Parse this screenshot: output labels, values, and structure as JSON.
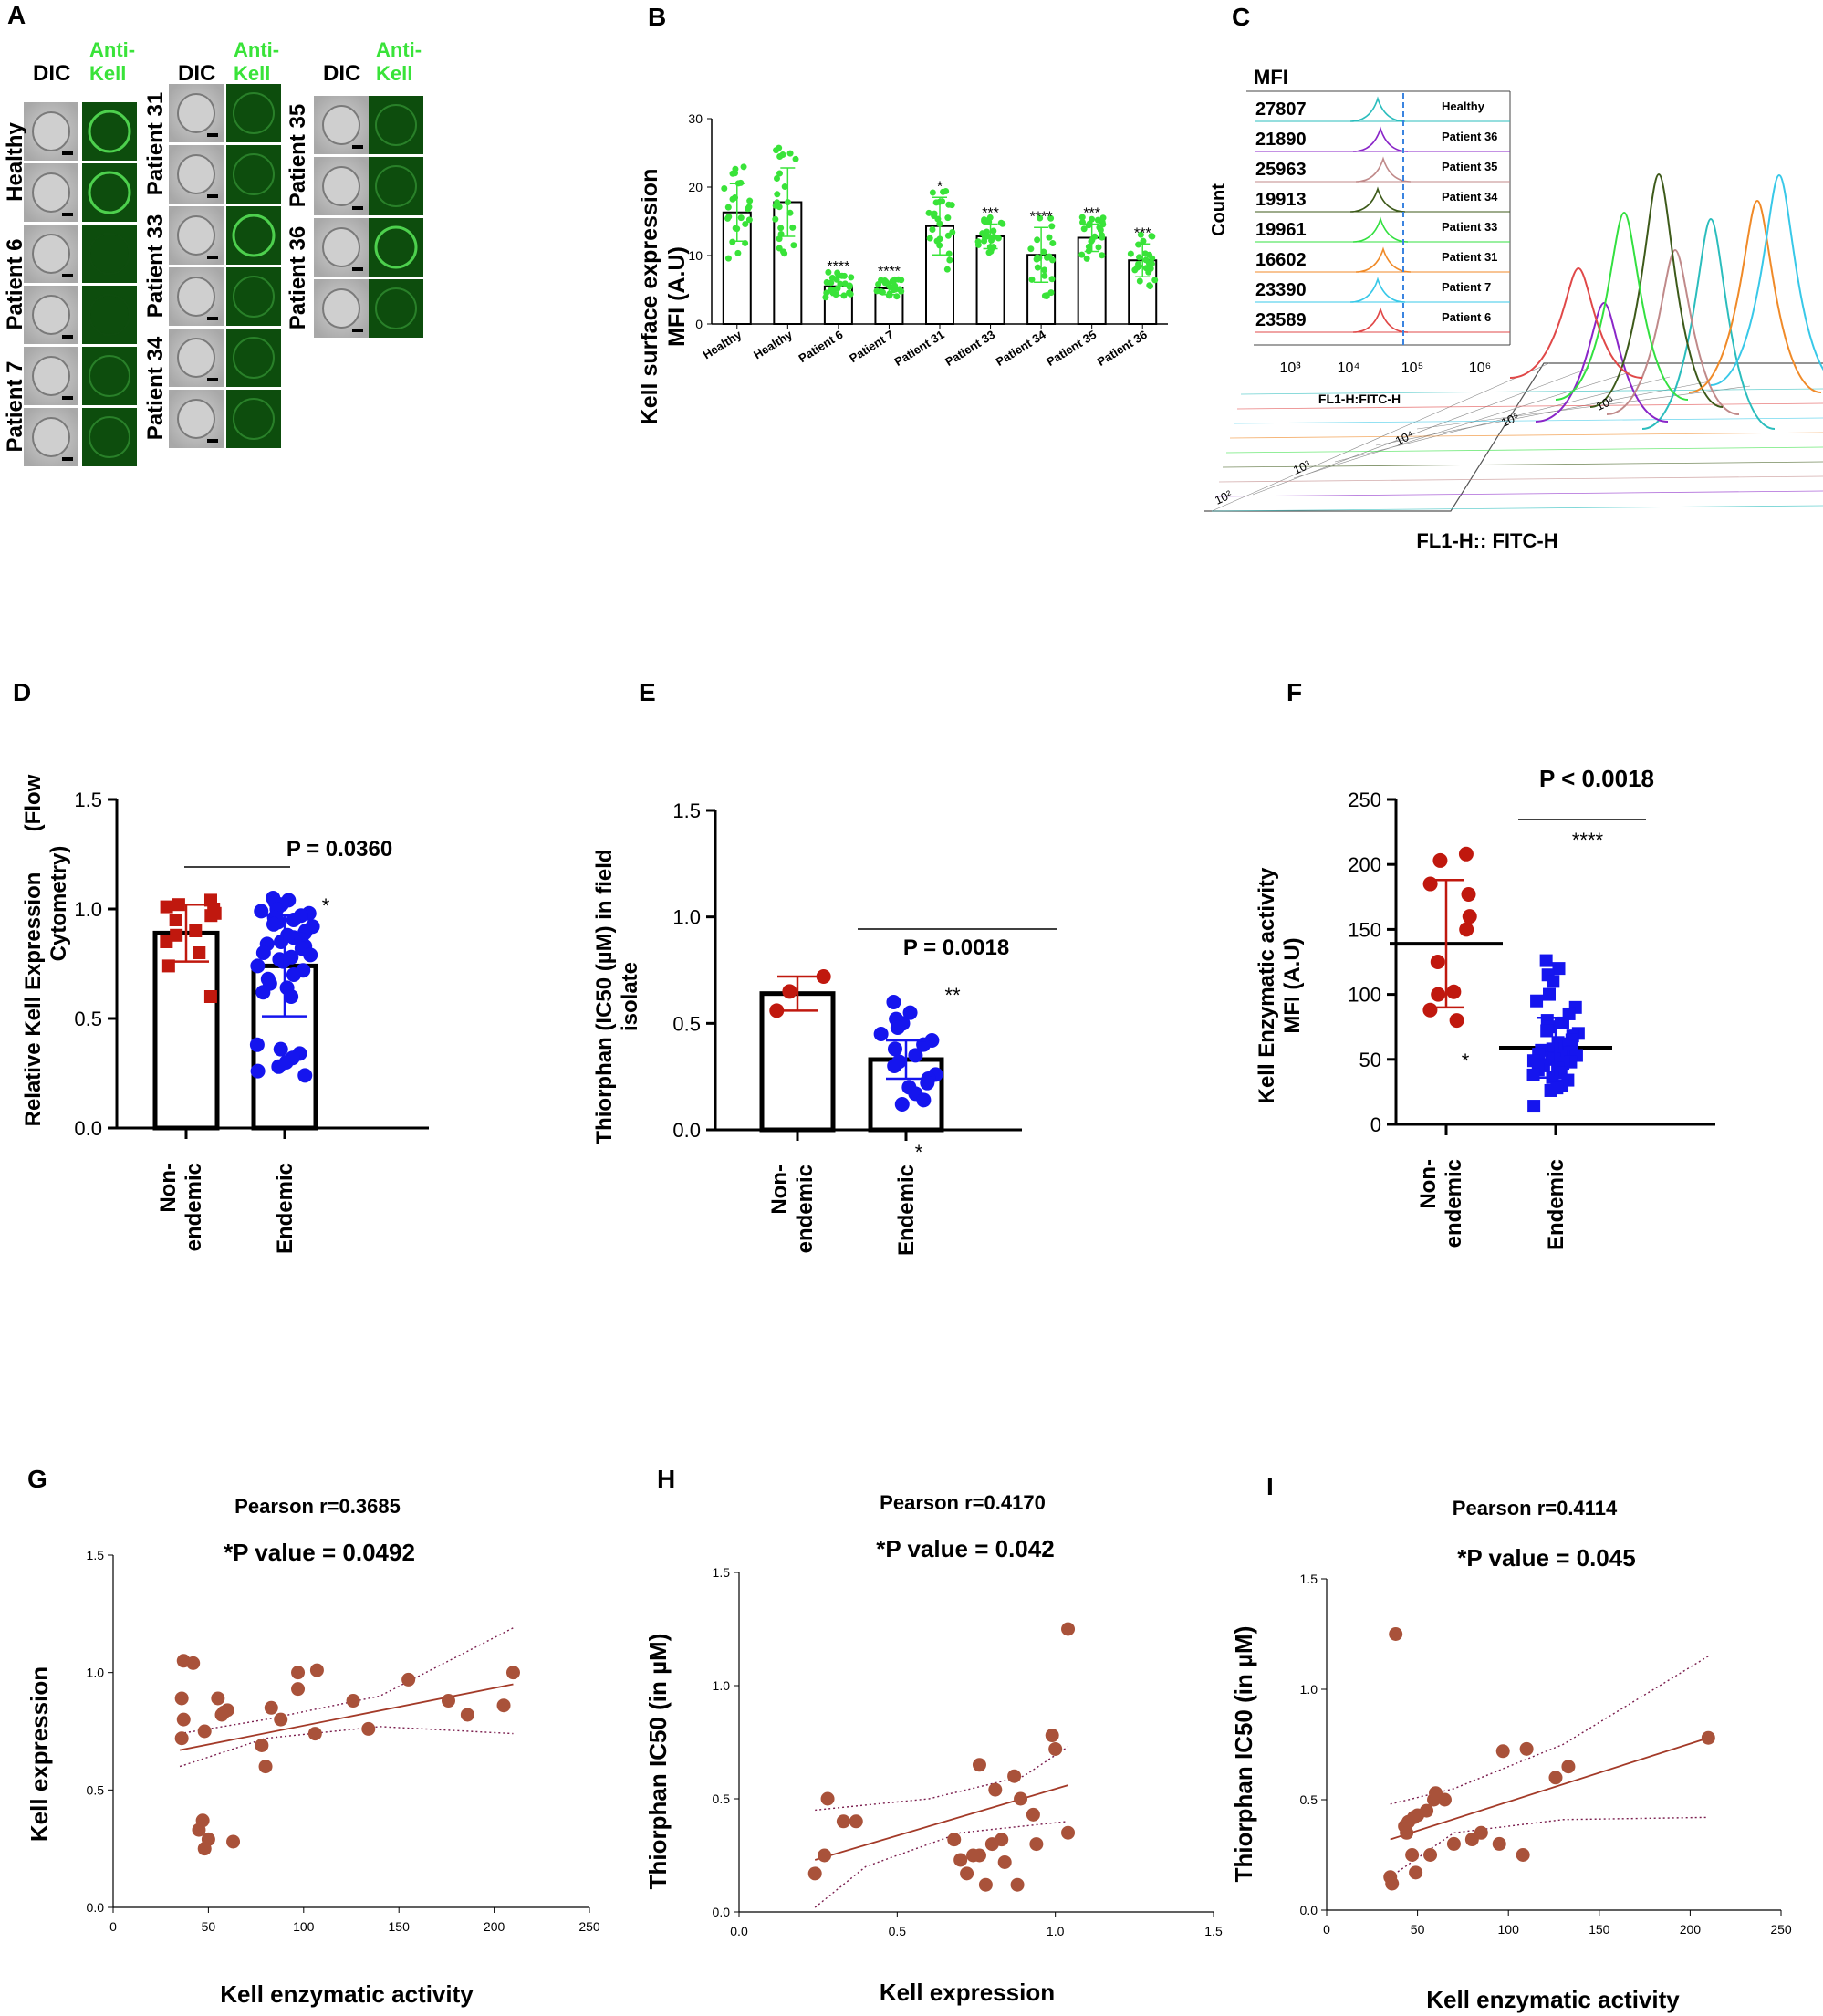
{
  "colors": {
    "green": "#39e339",
    "red": "#c0180e",
    "blue": "#1515ee",
    "brown": "#a9523a",
    "fitline": "#a33a28",
    "ci": "#7a1d4d",
    "dicbg": "#bdbdbd",
    "fluor": "#0d4d0d",
    "fluorRing": "#59e759"
  },
  "panelA": {
    "letter": "A",
    "dic_label": "DIC",
    "anti_kell_line1": "Anti-",
    "anti_kell_line2": "Kell",
    "columns": [
      {
        "rows": [
          "Healthy",
          "Patient 6",
          "Patient 7"
        ]
      },
      {
        "rows": [
          "Patient 31",
          "Patient 33",
          "Patient 34"
        ]
      },
      {
        "rows": [
          "Patient 35",
          "Patient 36"
        ]
      }
    ]
  },
  "panelB": {
    "letter": "B",
    "ylabel_line1": "Kell surface expression",
    "ylabel_line2": "MFI (A.U)",
    "y_ticks": [
      "0",
      "10",
      "20",
      "30"
    ],
    "categories": [
      "Healthy",
      "Healthy",
      "Patient 6",
      "Patient 7",
      "Patient 31",
      "Patient 33",
      "Patient 34",
      "Patient 35",
      "Patient 36"
    ],
    "values": [
      16.3,
      17.8,
      5.5,
      5.2,
      14.3,
      12.8,
      10.1,
      12.6,
      9.3
    ],
    "errors": [
      4.2,
      5.0,
      1.3,
      0.9,
      4.2,
      1.8,
      4.0,
      2.0,
      2.4
    ],
    "significance": [
      "",
      "",
      "****",
      "****",
      "*",
      "***",
      "****",
      "***",
      "***"
    ],
    "ylim": [
      0,
      30
    ]
  },
  "panelC": {
    "letter": "C",
    "mfi_title": "MFI",
    "count_label": "Count",
    "inset_xlabel": "FL1-H:FITC-H",
    "xlabel": "FL1-H:: FITC-H",
    "inset_ticks": [
      "10³",
      "10⁴",
      "10⁵",
      "10⁶"
    ],
    "main_ticks": [
      "10²",
      "10³",
      "10⁴",
      "10⁵",
      "10⁶"
    ],
    "rows": [
      {
        "mfi": "27807",
        "label": "Healthy",
        "color": "#2bbdbd"
      },
      {
        "mfi": "21890",
        "label": "Patient 36",
        "color": "#8a26c8"
      },
      {
        "mfi": "25963",
        "label": "Patient 35",
        "color": "#c08a8a"
      },
      {
        "mfi": "19913",
        "label": "Patient 34",
        "color": "#3d5a1a"
      },
      {
        "mfi": "19961",
        "label": "Patient 33",
        "color": "#33e040"
      },
      {
        "mfi": "16602",
        "label": "Patient 31",
        "color": "#f08a28"
      },
      {
        "mfi": "23390",
        "label": "Patient 7",
        "color": "#38c8e8"
      },
      {
        "mfi": "23589",
        "label": "Patient 6",
        "color": "#e04848"
      }
    ]
  },
  "panelD": {
    "letter": "D",
    "ylabel_line1": "Relative Kell Expression",
    "ylabel_line2": "(Flow",
    "ylabel_line3": "Cytometry)",
    "y_ticks": [
      "0.0",
      "0.5",
      "1.0",
      "1.5"
    ],
    "ylim": [
      0,
      1.5
    ],
    "p_text": "P = 0.0360",
    "star": "*",
    "groups": [
      {
        "label_line1": "Non-",
        "label_line2": "endemic",
        "mean": 0.89,
        "sd": 0.13,
        "marker": "square",
        "points": [
          1.04,
          1.02,
          1.01,
          1.0,
          0.98,
          0.97,
          0.95,
          0.9,
          0.88,
          0.85,
          0.8,
          0.74,
          0.6
        ]
      },
      {
        "label_line1": "Endemic",
        "label_line2": "",
        "mean": 0.74,
        "sd": 0.23,
        "marker": "circle",
        "points": [
          1.05,
          1.04,
          1.03,
          1.02,
          1.0,
          0.99,
          0.98,
          0.97,
          0.96,
          0.95,
          0.94,
          0.93,
          0.92,
          0.9,
          0.89,
          0.88,
          0.87,
          0.86,
          0.85,
          0.84,
          0.83,
          0.82,
          0.8,
          0.79,
          0.78,
          0.77,
          0.76,
          0.74,
          0.72,
          0.7,
          0.68,
          0.66,
          0.64,
          0.62,
          0.6,
          0.38,
          0.36,
          0.34,
          0.32,
          0.3,
          0.28,
          0.26,
          0.24
        ]
      }
    ]
  },
  "panelE": {
    "letter": "E",
    "ylabel_line1": "Thiorphan (IC50 (µM) in field",
    "ylabel_line2": "isolate",
    "y_ticks": [
      "0.0",
      "0.5",
      "1.0",
      "1.5"
    ],
    "ylim": [
      0,
      1.5
    ],
    "p_text": "P = 0.0018",
    "stars": "**",
    "star": "*",
    "groups": [
      {
        "label_line1": "Non-",
        "label_line2": "endemic",
        "mean": 0.64,
        "sd": 0.08,
        "marker": "circle",
        "points": [
          0.72,
          0.65,
          0.56
        ]
      },
      {
        "label_line1": "Endemic",
        "label_line2": "",
        "mean": 0.33,
        "sd": 0.09,
        "marker": "circle",
        "points": [
          0.6,
          0.55,
          0.52,
          0.5,
          0.48,
          0.45,
          0.42,
          0.4,
          0.38,
          0.35,
          0.32,
          0.3,
          0.26,
          0.24,
          0.22,
          0.2,
          0.17,
          0.14,
          0.12
        ]
      }
    ]
  },
  "panelF": {
    "letter": "F",
    "ylabel_line1": "Kell Enzymatic activity",
    "ylabel_line2": "MFI (A.U)",
    "y_ticks": [
      "0",
      "50",
      "100",
      "150",
      "200",
      "250"
    ],
    "ylim": [
      0,
      250
    ],
    "p_text": "P < 0.0018",
    "stars": "****",
    "star": "*",
    "groups": [
      {
        "label_line1": "Non-",
        "label_line2": "endemic",
        "mean": 139,
        "sd": 49,
        "marker": "circle",
        "points": [
          208,
          203,
          185,
          177,
          160,
          150,
          125,
          102,
          100,
          88,
          80
        ]
      },
      {
        "label_line1": "Endemic",
        "label_line2": "",
        "mean": 59,
        "sd": 23,
        "marker": "square",
        "points": [
          126,
          120,
          115,
          110,
          100,
          95,
          90,
          85,
          80,
          78,
          75,
          72,
          70,
          68,
          65,
          63,
          62,
          60,
          58,
          57,
          56,
          55,
          54,
          53,
          52,
          51,
          50,
          49,
          48,
          47,
          46,
          45,
          43,
          42,
          40,
          38,
          36,
          34,
          30,
          28,
          26,
          14
        ]
      }
    ]
  },
  "panelG": {
    "letter": "G",
    "title": "Pearson r=0.3685",
    "p_text": "*P value  = 0.0492",
    "xlabel": "Kell enzymatic activity",
    "ylabel": "Kell expression",
    "x_ticks": [
      "0",
      "50",
      "100",
      "150",
      "200",
      "250"
    ],
    "y_ticks": [
      "0.0",
      "0.5",
      "1.0",
      "1.5"
    ],
    "xlim": [
      0,
      250
    ],
    "ylim": [
      0,
      1.5
    ],
    "fit": [
      [
        35,
        0.67
      ],
      [
        210,
        0.95
      ]
    ],
    "ci_upper": [
      [
        35,
        0.74
      ],
      [
        80,
        0.8
      ],
      [
        140,
        0.9
      ],
      [
        210,
        1.19
      ]
    ],
    "ci_lower": [
      [
        35,
        0.6
      ],
      [
        80,
        0.72
      ],
      [
        140,
        0.77
      ],
      [
        210,
        0.74
      ]
    ],
    "points": [
      [
        37,
        1.05
      ],
      [
        42,
        1.04
      ],
      [
        36,
        0.89
      ],
      [
        55,
        0.89
      ],
      [
        58,
        0.83
      ],
      [
        60,
        0.84
      ],
      [
        37,
        0.8
      ],
      [
        36,
        0.72
      ],
      [
        48,
        0.75
      ],
      [
        57,
        0.82
      ],
      [
        45,
        0.33
      ],
      [
        47,
        0.37
      ],
      [
        50,
        0.29
      ],
      [
        48,
        0.25
      ],
      [
        63,
        0.28
      ],
      [
        78,
        0.69
      ],
      [
        80,
        0.6
      ],
      [
        83,
        0.85
      ],
      [
        88,
        0.8
      ],
      [
        97,
        0.93
      ],
      [
        97,
        1.0
      ],
      [
        107,
        1.01
      ],
      [
        106,
        0.74
      ],
      [
        126,
        0.88
      ],
      [
        134,
        0.76
      ],
      [
        155,
        0.97
      ],
      [
        176,
        0.88
      ],
      [
        186,
        0.82
      ],
      [
        205,
        0.86
      ],
      [
        210,
        1.0
      ]
    ]
  },
  "panelH": {
    "letter": "H",
    "title": "Pearson r=0.4170",
    "p_text": "*P value  = 0.042",
    "xlabel": "Kell expression",
    "ylabel": "Thiorphan IC50 (in µM)",
    "x_ticks": [
      "0.0",
      "0.5",
      "1.0",
      "1.5"
    ],
    "y_ticks": [
      "0.0",
      "0.5",
      "1.0",
      "1.5"
    ],
    "xlim": [
      0,
      1.5
    ],
    "ylim": [
      0,
      1.5
    ],
    "fit": [
      [
        0.24,
        0.23
      ],
      [
        1.04,
        0.56
      ]
    ],
    "ci_upper": [
      [
        0.24,
        0.45
      ],
      [
        0.6,
        0.5
      ],
      [
        0.9,
        0.6
      ],
      [
        1.04,
        0.73
      ]
    ],
    "ci_lower": [
      [
        0.24,
        0.02
      ],
      [
        0.4,
        0.2
      ],
      [
        0.7,
        0.35
      ],
      [
        1.04,
        0.4
      ]
    ],
    "points": [
      [
        0.24,
        0.17
      ],
      [
        0.27,
        0.25
      ],
      [
        0.28,
        0.5
      ],
      [
        0.33,
        0.4
      ],
      [
        0.37,
        0.4
      ],
      [
        0.68,
        0.32
      ],
      [
        0.7,
        0.23
      ],
      [
        0.72,
        0.17
      ],
      [
        0.74,
        0.25
      ],
      [
        0.76,
        0.25
      ],
      [
        0.76,
        0.65
      ],
      [
        0.78,
        0.12
      ],
      [
        0.8,
        0.3
      ],
      [
        0.81,
        0.54
      ],
      [
        0.83,
        0.32
      ],
      [
        0.84,
        0.22
      ],
      [
        0.87,
        0.6
      ],
      [
        0.88,
        0.12
      ],
      [
        0.89,
        0.5
      ],
      [
        0.93,
        0.43
      ],
      [
        0.94,
        0.3
      ],
      [
        0.99,
        0.78
      ],
      [
        1.0,
        0.72
      ],
      [
        1.04,
        0.35
      ],
      [
        1.04,
        1.25
      ]
    ]
  },
  "panelI": {
    "letter": "I",
    "title": "Pearson r=0.4114",
    "p_text": "*P value  = 0.045",
    "xlabel": "Kell enzymatic activity",
    "ylabel": "Thiorphan IC50 (in µM)",
    "x_ticks": [
      "0",
      "50",
      "100",
      "150",
      "200",
      "250"
    ],
    "y_ticks": [
      "0.0",
      "0.5",
      "1.0",
      "1.5"
    ],
    "xlim": [
      0,
      250
    ],
    "ylim": [
      0,
      1.5
    ],
    "fit": [
      [
        35,
        0.32
      ],
      [
        210,
        0.78
      ]
    ],
    "ci_upper": [
      [
        35,
        0.48
      ],
      [
        70,
        0.55
      ],
      [
        130,
        0.75
      ],
      [
        210,
        1.15
      ]
    ],
    "ci_lower": [
      [
        35,
        0.15
      ],
      [
        70,
        0.35
      ],
      [
        130,
        0.41
      ],
      [
        210,
        0.42
      ]
    ],
    "points": [
      [
        35,
        0.15
      ],
      [
        36,
        0.12
      ],
      [
        38,
        1.25
      ],
      [
        43,
        0.38
      ],
      [
        44,
        0.35
      ],
      [
        45,
        0.4
      ],
      [
        47,
        0.25
      ],
      [
        48,
        0.42
      ],
      [
        49,
        0.17
      ],
      [
        50,
        0.43
      ],
      [
        55,
        0.45
      ],
      [
        57,
        0.25
      ],
      [
        59,
        0.5
      ],
      [
        60,
        0.53
      ],
      [
        65,
        0.5
      ],
      [
        70,
        0.3
      ],
      [
        80,
        0.32
      ],
      [
        85,
        0.35
      ],
      [
        95,
        0.3
      ],
      [
        97,
        0.72
      ],
      [
        108,
        0.25
      ],
      [
        110,
        0.73
      ],
      [
        126,
        0.6
      ],
      [
        133,
        0.65
      ],
      [
        210,
        0.78
      ]
    ]
  }
}
